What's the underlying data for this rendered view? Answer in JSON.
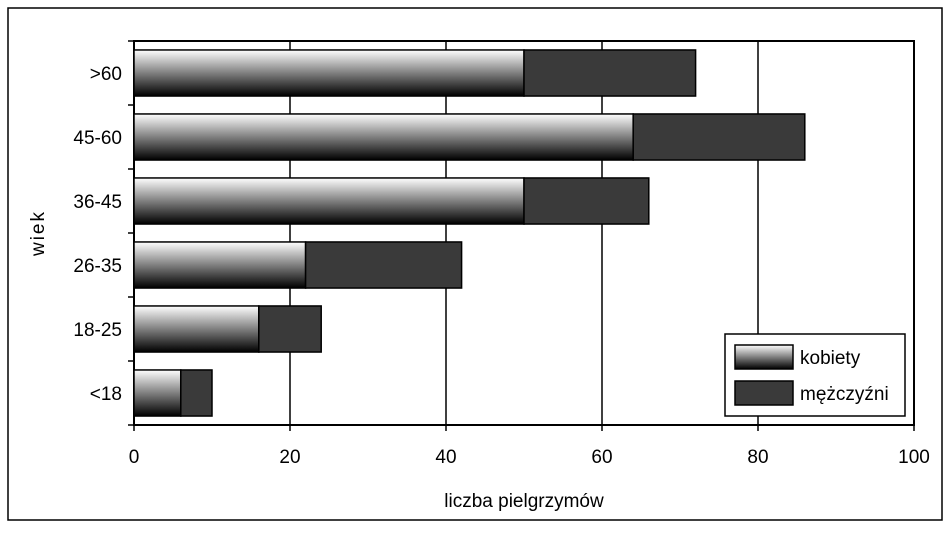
{
  "chart_data": {
    "type": "bar",
    "orientation": "horizontal",
    "stacked": true,
    "title": "",
    "xlabel": "liczba pielgrzymów",
    "ylabel": "wiek",
    "categories": [
      "<18",
      "18-25",
      "26-35",
      "36-45",
      "45-60",
      ">60"
    ],
    "xlim": [
      0,
      100
    ],
    "xticks": [
      0,
      20,
      40,
      60,
      80,
      100
    ],
    "grid": "vertical",
    "legend_position": "bottom-right",
    "series": [
      {
        "name": "kobiety",
        "values": [
          6,
          16,
          22,
          50,
          64,
          50
        ],
        "style": "gradient"
      },
      {
        "name": "mężczyźni",
        "values": [
          4,
          8,
          20,
          16,
          22,
          22
        ],
        "style": "solid"
      }
    ],
    "colors": {
      "kobiety_light": "#ffffff",
      "kobiety_dark": "#000000",
      "mezczyzni": "#3a3a3a",
      "grid": "#000000",
      "outline": "#000000"
    }
  }
}
